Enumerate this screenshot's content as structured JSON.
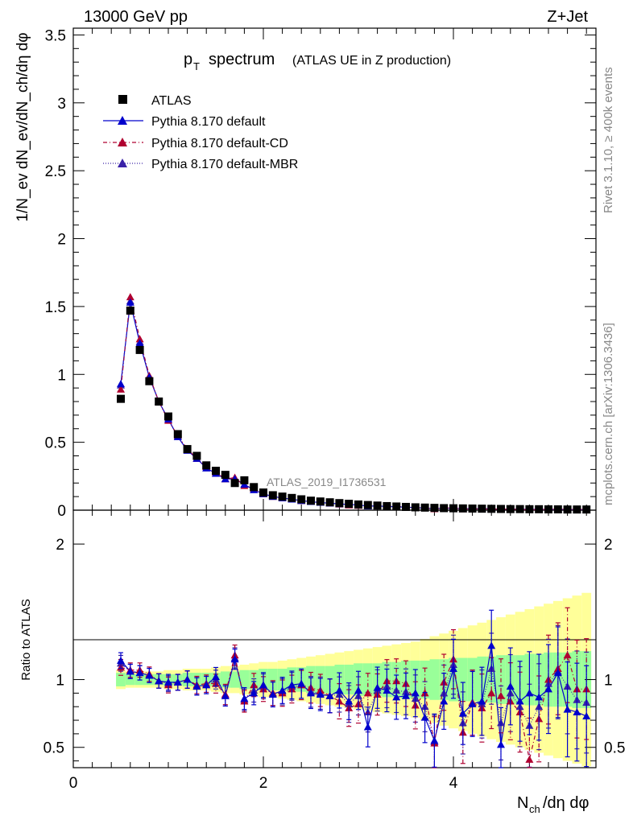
{
  "header": {
    "collision": "13000 GeV pp",
    "process": "Z+Jet",
    "title_main": "p",
    "title_sub": "T",
    "title_word": "spectrum",
    "title_paren": "(ATLAS UE in Z production)",
    "watermark": "ATLAS_2019_I1736531",
    "rivet_label": "Rivet 3.1.10, ≥ 400k events",
    "mcplots_label": "mcplots.cern.ch [arXiv:1306.3436]"
  },
  "legend": {
    "items": [
      {
        "label": "ATLAS",
        "color": "#000000",
        "marker": "square"
      },
      {
        "label": "Pythia 8.170 default",
        "color": "#0000cc",
        "marker": "triangle"
      },
      {
        "label": "Pythia 8.170 default-CD",
        "color": "#b00030",
        "marker": "triangle"
      },
      {
        "label": "Pythia 8.170 default-MBR",
        "color": "#3a22a8",
        "marker": "triangle"
      }
    ]
  },
  "chart_data": [
    {
      "type": "scatter",
      "panel": "main",
      "ylabel": "1/N_ev dN_ev/dN_ch/dη dφ",
      "xlim": [
        0,
        5.5
      ],
      "ylim": [
        0,
        3.55
      ],
      "y_ticks": [
        "0",
        "0.5",
        "1",
        "1.5",
        "2",
        "2.5",
        "3",
        "3.5"
      ],
      "x": [
        0.5,
        0.6,
        0.7,
        0.8,
        0.9,
        1.0,
        1.1,
        1.2,
        1.3,
        1.4,
        1.5,
        1.6,
        1.7,
        1.8,
        1.9,
        2.0,
        2.1,
        2.2,
        2.3,
        2.4,
        2.5,
        2.6,
        2.7,
        2.8,
        2.9,
        3.0,
        3.1,
        3.2,
        3.3,
        3.4,
        3.5,
        3.6,
        3.7,
        3.8,
        3.9,
        4.0,
        4.1,
        4.2,
        4.3,
        4.4,
        4.5,
        4.6,
        4.7,
        4.8,
        4.9,
        5.0,
        5.1,
        5.2,
        5.3,
        5.4
      ],
      "series": [
        {
          "name": "ATLAS",
          "values": [
            0.82,
            1.47,
            1.18,
            0.95,
            0.8,
            0.69,
            0.56,
            0.45,
            0.4,
            0.33,
            0.29,
            0.26,
            0.2,
            0.22,
            0.17,
            0.13,
            0.11,
            0.1,
            0.09,
            0.08,
            0.07,
            0.064,
            0.058,
            0.052,
            0.047,
            0.042,
            0.038,
            0.034,
            0.03,
            0.027,
            0.024,
            0.021,
            0.019,
            0.017,
            0.015,
            0.014,
            0.013,
            0.012,
            0.011,
            0.01,
            0.009,
            0.008,
            0.008,
            0.007,
            0.007,
            0.006,
            0.006,
            0.005,
            0.005,
            0.005
          ]
        },
        {
          "name": "Pythia 8.170 default",
          "values": [
            0.93,
            1.53,
            1.23,
            0.98,
            0.8,
            0.67,
            0.54,
            0.44,
            0.38,
            0.31,
            0.27,
            0.23,
            0.23,
            0.19,
            0.15,
            0.12,
            0.1,
            0.09,
            0.08,
            0.07,
            0.062,
            0.056,
            0.051,
            0.046,
            0.042,
            0.038,
            0.03,
            0.031,
            0.027,
            0.025,
            0.022,
            0.019,
            0.015,
            0.012,
            0.014,
            0.015,
            0.01,
            0.011,
            0.01,
            0.012,
            0.005,
            0.008,
            0.007,
            0.006,
            0.006,
            0.005,
            0.006,
            0.004,
            0.004,
            0.004
          ]
        },
        {
          "name": "Pythia 8.170 default-CD",
          "values": [
            0.89,
            1.57,
            1.26,
            0.99,
            0.8,
            0.66,
            0.55,
            0.45,
            0.38,
            0.32,
            0.28,
            0.23,
            0.24,
            0.18,
            0.16,
            0.12,
            0.1,
            0.09,
            0.08,
            0.07,
            0.065,
            0.058,
            0.051,
            0.044,
            0.037,
            0.034,
            0.034,
            0.03,
            0.03,
            0.027,
            0.023,
            0.017,
            0.017,
            0.009,
            0.015,
            0.016,
            0.008,
            0.01,
            0.009,
            0.009,
            0.008,
            0.007,
            0.006,
            0.003,
            0.005,
            0.006,
            0.007,
            0.006,
            0.005,
            0.005
          ]
        },
        {
          "name": "Pythia 8.170 default-MBR",
          "values": [
            0.92,
            1.54,
            1.24,
            0.98,
            0.8,
            0.67,
            0.54,
            0.44,
            0.38,
            0.31,
            0.27,
            0.23,
            0.23,
            0.19,
            0.15,
            0.12,
            0.1,
            0.09,
            0.08,
            0.07,
            0.063,
            0.057,
            0.051,
            0.046,
            0.041,
            0.037,
            0.031,
            0.031,
            0.028,
            0.025,
            0.022,
            0.019,
            0.016,
            0.011,
            0.014,
            0.015,
            0.009,
            0.011,
            0.01,
            0.011,
            0.006,
            0.008,
            0.007,
            0.005,
            0.006,
            0.005,
            0.006,
            0.005,
            0.004,
            0.004
          ]
        }
      ]
    },
    {
      "type": "scatter",
      "panel": "ratio",
      "xlabel_main": "N",
      "xlabel_sub": "ch",
      "xlabel_rest": "/dη dφ",
      "ylabel": "Ratio to ATLAS",
      "xlim": [
        0,
        5.5
      ],
      "ylim": [
        0.35,
        2.25
      ],
      "x_ticks": [
        "0",
        "2",
        "4"
      ],
      "y_ticks": [
        "0.5",
        "1",
        "2"
      ],
      "x": [
        0.5,
        0.6,
        0.7,
        0.8,
        0.9,
        1.0,
        1.1,
        1.2,
        1.3,
        1.4,
        1.5,
        1.6,
        1.7,
        1.8,
        1.9,
        2.0,
        2.1,
        2.2,
        2.3,
        2.4,
        2.5,
        2.6,
        2.7,
        2.8,
        2.9,
        3.0,
        3.1,
        3.2,
        3.3,
        3.4,
        3.5,
        3.6,
        3.7,
        3.8,
        3.9,
        4.0,
        4.1,
        4.2,
        4.3,
        4.4,
        4.5,
        4.6,
        4.7,
        4.8,
        4.9,
        5.0,
        5.1,
        5.2,
        5.3,
        5.4
      ],
      "band_green_halfwidth": [
        0.05,
        0.04,
        0.04,
        0.04,
        0.04,
        0.04,
        0.04,
        0.05,
        0.05,
        0.05,
        0.05,
        0.06,
        0.06,
        0.07,
        0.07,
        0.08,
        0.08,
        0.08,
        0.09,
        0.09,
        0.1,
        0.1,
        0.1,
        0.11,
        0.11,
        0.12,
        0.12,
        0.12,
        0.13,
        0.13,
        0.14,
        0.14,
        0.14,
        0.15,
        0.15,
        0.16,
        0.16,
        0.16,
        0.17,
        0.17,
        0.18,
        0.18,
        0.18,
        0.19,
        0.19,
        0.2,
        0.2,
        0.2,
        0.21,
        0.21
      ],
      "band_yellow_halfwidth": [
        0.07,
        0.06,
        0.06,
        0.06,
        0.06,
        0.07,
        0.07,
        0.08,
        0.08,
        0.08,
        0.09,
        0.1,
        0.1,
        0.11,
        0.12,
        0.13,
        0.13,
        0.14,
        0.15,
        0.16,
        0.17,
        0.18,
        0.19,
        0.2,
        0.21,
        0.22,
        0.23,
        0.24,
        0.25,
        0.26,
        0.27,
        0.28,
        0.3,
        0.32,
        0.34,
        0.36,
        0.38,
        0.4,
        0.42,
        0.44,
        0.46,
        0.48,
        0.5,
        0.52,
        0.54,
        0.56,
        0.58,
        0.6,
        0.62,
        0.64
      ],
      "series": [
        {
          "name": "Pythia 8.170 default",
          "values": [
            1.14,
            1.06,
            1.05,
            1.03,
            0.99,
            0.98,
            0.98,
            1.0,
            0.95,
            0.96,
            1.02,
            0.88,
            1.15,
            0.86,
            0.9,
            0.96,
            0.89,
            0.92,
            0.96,
            0.97,
            0.9,
            0.89,
            0.88,
            0.92,
            0.84,
            0.92,
            0.65,
            0.94,
            0.92,
            0.87,
            0.88,
            0.9,
            0.72,
            0.55,
            0.84,
            1.08,
            0.75,
            0.82,
            0.84,
            1.25,
            0.52,
            0.95,
            0.84,
            0.9,
            0.87,
            0.93,
            1.05,
            0.78,
            0.76,
            0.73
          ]
        },
        {
          "name": "Pythia 8.170 default-CD",
          "values": [
            1.09,
            1.07,
            1.07,
            1.04,
            0.99,
            0.96,
            0.98,
            1.0,
            0.96,
            0.97,
            0.97,
            0.89,
            1.18,
            0.84,
            0.96,
            0.93,
            0.9,
            0.9,
            0.93,
            0.96,
            0.94,
            0.92,
            0.88,
            0.84,
            0.79,
            0.82,
            0.9,
            0.89,
            0.99,
            0.99,
            0.97,
            0.81,
            0.9,
            0.53,
            0.98,
            1.15,
            0.61,
            0.83,
            0.79,
            0.9,
            0.88,
            0.84,
            0.76,
            0.41,
            0.71,
            1.0,
            1.08,
            1.18,
            0.93,
            0.93
          ]
        },
        {
          "name": "Pythia 8.170 default-MBR",
          "values": [
            1.12,
            1.06,
            1.05,
            1.03,
            0.99,
            0.97,
            0.98,
            1.0,
            0.95,
            0.96,
            1.0,
            0.88,
            1.16,
            0.85,
            0.92,
            0.95,
            0.9,
            0.91,
            0.95,
            0.96,
            0.91,
            0.9,
            0.88,
            0.89,
            0.82,
            0.88,
            0.76,
            0.92,
            0.95,
            0.92,
            0.91,
            0.86,
            0.8,
            0.54,
            0.9,
            1.11,
            0.68,
            0.83,
            0.82,
            1.08,
            0.68,
            0.9,
            0.8,
            0.66,
            0.8,
            0.97,
            1.06,
            0.95,
            0.85,
            0.83
          ]
        }
      ]
    }
  ]
}
